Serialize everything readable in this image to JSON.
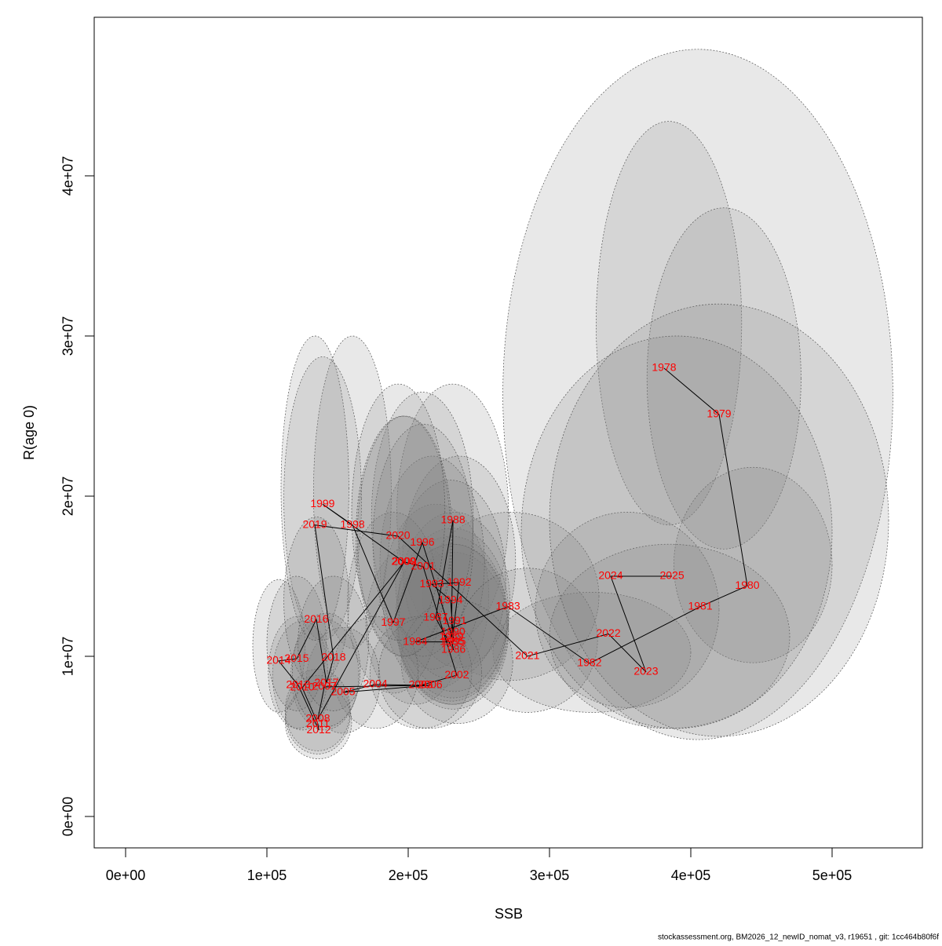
{
  "chart_data": {
    "type": "scatter",
    "xlabel": "SSB",
    "ylabel": "R(age 0)",
    "footnote": "stockassessment.org, BM2026_12_newID_nomat_v3, r19651 , git: 1cc464b80f6f",
    "labels": [
      "1978",
      "1979",
      "1980",
      "1981",
      "1982",
      "1983",
      "1984",
      "1985",
      "1986",
      "1987",
      "1988",
      "1989",
      "1990",
      "1991",
      "1992",
      "1993",
      "1994",
      "1995",
      "1996",
      "1997",
      "1998",
      "1999",
      "2000",
      "2001",
      "2002",
      "2003",
      "2004",
      "2005",
      "2006",
      "2007",
      "2008",
      "2009",
      "2010",
      "2011",
      "2012",
      "2013",
      "2014",
      "2015",
      "2016",
      "2017",
      "2018",
      "2019",
      "2020",
      "2021",
      "2022",
      "2023",
      "2024",
      "2025"
    ],
    "x": [
      381100,
      420000,
      440000,
      406700,
      328300,
      270600,
      205000,
      231000,
      232000,
      219400,
      231700,
      230600,
      231700,
      232800,
      236100,
      216700,
      230000,
      232200,
      210000,
      189400,
      160600,
      139400,
      196700,
      210600,
      234400,
      208900,
      176700,
      153900,
      215600,
      140600,
      136100,
      197200,
      125000,
      136100,
      136700,
      122200,
      108300,
      121100,
      135000,
      142200,
      147200,
      133900,
      192800,
      284400,
      341700,
      368300,
      343300,
      386700
    ],
    "values": [
      27990000,
      25100000,
      14400000,
      13100000,
      9560000,
      13100000,
      10900000,
      10900000,
      10400000,
      12400000,
      18500000,
      11200000,
      11500000,
      12200000,
      14600000,
      14500000,
      13500000,
      10900000,
      17100000,
      12100000,
      18200000,
      19500000,
      15900000,
      15600000,
      8820000,
      8190000,
      8240000,
      7750000,
      8190000,
      8090000,
      6080000,
      15900000,
      8040000,
      5780000,
      5390000,
      8190000,
      9710000,
      9850000,
      12300000,
      8330000,
      9900000,
      18200000,
      17500000,
      10000000,
      11400000,
      9020000,
      15000000,
      15000000
    ],
    "ssb_lower": [
      333000,
      369000,
      388000,
      267000,
      260000,
      210000,
      170000,
      192000,
      193000,
      182000,
      192000,
      191000,
      192000,
      193000,
      196000,
      180000,
      191000,
      193000,
      174000,
      157000,
      133000,
      112000,
      163000,
      175000,
      195000,
      173000,
      147000,
      128000,
      179000,
      117000,
      113000,
      164000,
      104000,
      113000,
      113000,
      101000,
      90000,
      100000,
      112000,
      118000,
      122000,
      110000,
      160000,
      235000,
      290000,
      300000,
      280000,
      300000
    ],
    "ssb_upper": [
      436000,
      478000,
      500000,
      543000,
      400000,
      335000,
      240000,
      270000,
      271000,
      257000,
      271000,
      270000,
      271000,
      272000,
      276000,
      254000,
      269000,
      271000,
      246000,
      222000,
      188000,
      167000,
      230000,
      246000,
      274000,
      245000,
      207000,
      180000,
      252000,
      165000,
      159000,
      231000,
      146000,
      159000,
      160000,
      143000,
      127000,
      142000,
      158000,
      166000,
      172000,
      158000,
      226000,
      334000,
      420000,
      470000,
      500000,
      540000
    ],
    "r_lower": [
      18200000,
      16700000,
      9600000,
      4800000,
      6500000,
      8500000,
      7000000,
      7000000,
      6700000,
      8000000,
      11000000,
      7200000,
      7400000,
      7800000,
      9300000,
      9200000,
      8600000,
      7000000,
      10900000,
      7700000,
      10500000,
      11000000,
      10000000,
      10000000,
      5800000,
      5500000,
      5500000,
      5200000,
      5500000,
      5400000,
      4100000,
      10000000,
      5400000,
      3900000,
      3600000,
      5500000,
      6500000,
      6600000,
      8200000,
      5600000,
      6600000,
      11000000,
      11000000,
      6500000,
      6800000,
      5500000,
      5500000,
      5000000
    ],
    "r_upper": [
      43400000,
      38000000,
      21800000,
      47900000,
      14000000,
      19000000,
      17000000,
      17000000,
      16500000,
      19500000,
      27000000,
      17500000,
      18000000,
      19000000,
      22500000,
      22500000,
      21000000,
      17000000,
      26500000,
      19000000,
      30000000,
      28700000,
      25000000,
      24500000,
      13500000,
      12500000,
      12500000,
      11800000,
      12500000,
      12300000,
      9200000,
      25000000,
      12200000,
      8800000,
      8200000,
      12500000,
      14800000,
      15000000,
      18700000,
      12700000,
      15000000,
      30000000,
      27000000,
      15500000,
      19000000,
      17000000,
      30000000,
      32000000
    ],
    "point_color": "#ff0000",
    "line_color": "#000000",
    "ellipse_color": "#808080",
    "xlim": [
      -22222,
      563889
    ],
    "ylim": [
      -1960000,
      49900000
    ],
    "xticks": [
      {
        "value": 0,
        "label": "0e+00"
      },
      {
        "value": 100000,
        "label": "1e+05"
      },
      {
        "value": 200000,
        "label": "2e+05"
      },
      {
        "value": 300000,
        "label": "3e+05"
      },
      {
        "value": 400000,
        "label": "4e+05"
      },
      {
        "value": 500000,
        "label": "5e+05"
      }
    ],
    "yticks": [
      {
        "value": 0,
        "label": "0e+00"
      },
      {
        "value": 10000000,
        "label": "1e+07"
      },
      {
        "value": 20000000,
        "label": "2e+07"
      },
      {
        "value": 30000000,
        "label": "3e+07"
      },
      {
        "value": 40000000,
        "label": "4e+07"
      }
    ]
  }
}
